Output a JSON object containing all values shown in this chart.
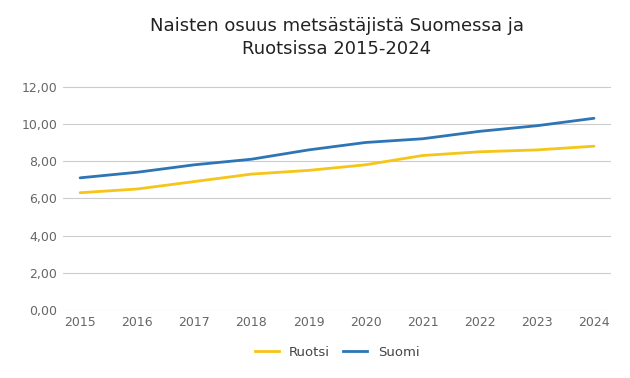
{
  "title": "Naisten osuus metsästäjistä Suomessa ja\nRuotsissa 2015-2024",
  "years": [
    2015,
    2016,
    2017,
    2018,
    2019,
    2020,
    2021,
    2022,
    2023,
    2024
  ],
  "ruotsi": [
    6.3,
    6.5,
    6.9,
    7.3,
    7.5,
    7.8,
    8.3,
    8.5,
    8.6,
    8.8
  ],
  "suomi": [
    7.1,
    7.4,
    7.8,
    8.1,
    8.6,
    9.0,
    9.2,
    9.6,
    9.9,
    10.3
  ],
  "ruotsi_color": "#F5C518",
  "suomi_color": "#2E75B6",
  "background_color": "#FFFFFF",
  "ylim": [
    0,
    13
  ],
  "yticks": [
    0.0,
    2.0,
    4.0,
    6.0,
    8.0,
    10.0,
    12.0
  ],
  "ytick_labels": [
    "0,00",
    "2,00",
    "4,00",
    "6,00",
    "8,00",
    "10,00",
    "12,00"
  ],
  "legend_labels": [
    "Ruotsi",
    "Suomi"
  ],
  "line_width": 2.0,
  "title_fontsize": 13,
  "tick_fontsize": 9,
  "legend_fontsize": 9.5
}
